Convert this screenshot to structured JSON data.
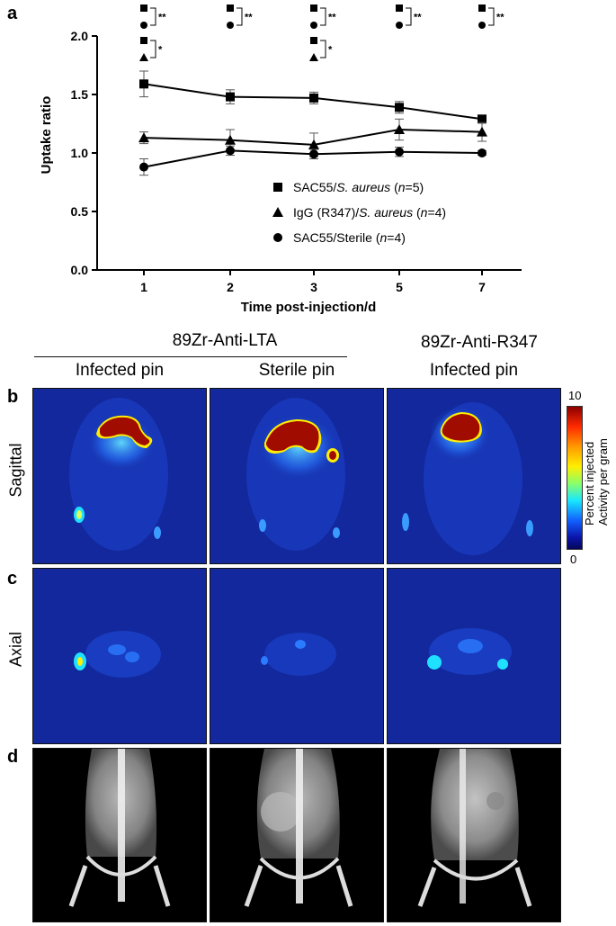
{
  "panels": {
    "a": "a",
    "b": "b",
    "c": "c",
    "d": "d"
  },
  "chart_data": {
    "type": "line",
    "ylabel": "Uptake ratio",
    "xlabel": "Time post-injection/d",
    "categories": [
      "1",
      "2",
      "3",
      "5",
      "7"
    ],
    "ylim": [
      0.0,
      2.0
    ],
    "yticks": [
      "0.0",
      "0.5",
      "1.0",
      "1.5",
      "2.0"
    ],
    "series": [
      {
        "name": "SAC55/S. aureus (n=5)",
        "legend_pre": "SAC55/",
        "legend_italic": "S. aureus",
        "legend_mid": " (",
        "legend_n": "n",
        "legend_post": "=5)",
        "marker": "square",
        "values": [
          1.59,
          1.48,
          1.47,
          1.39,
          1.29
        ],
        "errors": [
          0.11,
          0.06,
          0.05,
          0.05,
          0.03
        ]
      },
      {
        "name": "IgG (R347)/S. aureus (n=4)",
        "legend_pre": "IgG (R347)/",
        "legend_italic": "S. aureus",
        "legend_mid": " (",
        "legend_n": "n",
        "legend_post": "=4)",
        "marker": "triangle",
        "values": [
          1.13,
          1.11,
          1.07,
          1.2,
          1.18
        ],
        "errors": [
          0.05,
          0.09,
          0.1,
          0.09,
          0.08
        ]
      },
      {
        "name": "SAC55/Sterile (n=4)",
        "legend_pre": "SAC55/Sterile",
        "legend_italic": "",
        "legend_mid": " (",
        "legend_n": "n",
        "legend_post": "=4)",
        "marker": "circle",
        "values": [
          0.88,
          1.02,
          0.99,
          1.01,
          1.0
        ],
        "errors": [
          0.07,
          0.04,
          0.04,
          0.04,
          0.02
        ]
      }
    ],
    "significance": [
      {
        "x": "1",
        "markers": [
          "square",
          "circle"
        ],
        "label": "**"
      },
      {
        "x": "1",
        "markers": [
          "square",
          "triangle"
        ],
        "label": "*"
      },
      {
        "x": "2",
        "markers": [
          "square",
          "circle"
        ],
        "label": "**"
      },
      {
        "x": "3",
        "markers": [
          "square",
          "circle"
        ],
        "label": "**"
      },
      {
        "x": "3",
        "markers": [
          "square",
          "triangle"
        ],
        "label": "*"
      },
      {
        "x": "5",
        "markers": [
          "square",
          "circle"
        ],
        "label": "**"
      },
      {
        "x": "7",
        "markers": [
          "square",
          "circle"
        ],
        "label": "**"
      }
    ]
  },
  "headers": {
    "group1": "89Zr-Anti-LTA",
    "group2": "89Zr-Anti-R347",
    "col1": "Infected pin",
    "col2": "Sterile pin",
    "col3": "Infected pin"
  },
  "rows": {
    "sagittal": "Sagittal",
    "axial": "Axial"
  },
  "colorbar": {
    "max": "10",
    "min": "0",
    "label_line1": "Percent injected",
    "label_line2": "Activity per gram",
    "colors": [
      "#8b0000",
      "#ff2a00",
      "#ff9900",
      "#ffee00",
      "#8aff6a",
      "#18e8ff",
      "#1260ff",
      "#05075a"
    ]
  },
  "colors": {
    "pet_background": "#12289c",
    "xray_background": "#000000",
    "hot_spot": "#a00d00"
  }
}
